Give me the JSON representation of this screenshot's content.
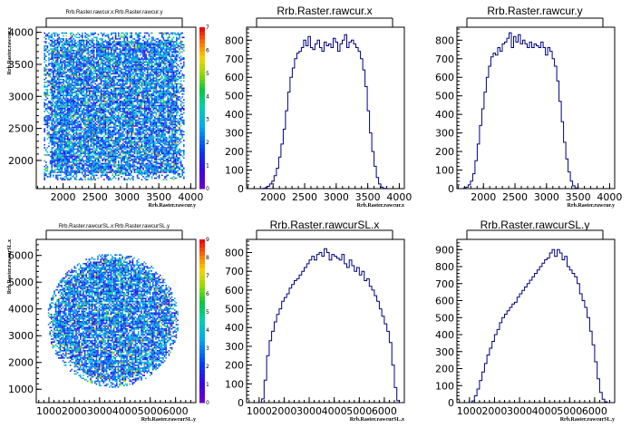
{
  "canvas_bg": "#ffffff",
  "hist_color": "#000080",
  "chart_data": [
    {
      "id": "p1",
      "type": "heatmap",
      "title": "Rrb.Raster.rawcur.x:Rrb.Raster.rawcur.y",
      "xlabel": "Rrb.Raster.rawcur.y",
      "ylabel": "Rrb.Raster.rawcur.x",
      "xlim": [
        1580,
        4080
      ],
      "ylim": [
        1560,
        4080
      ],
      "xticks": [
        2000,
        2500,
        3000,
        3500,
        4000
      ],
      "yticks": [
        2000,
        2500,
        3000,
        3500,
        4000
      ],
      "xticklabels": [
        "2000",
        "2500",
        "3000",
        "3500",
        "4000"
      ],
      "yticklabels": [
        "2000",
        "2500",
        "3000",
        "3500",
        "4000"
      ],
      "shape": "square",
      "cx": 2800,
      "cy": 2850,
      "rx": 1100,
      "ry": 1150,
      "zlim": [
        0,
        7
      ],
      "colorbar_ticks": [
        "0",
        "1",
        "2",
        "3",
        "4",
        "5",
        "6",
        "7"
      ]
    },
    {
      "id": "p2",
      "type": "bar",
      "title": "Rrb.Raster.rawcur.x",
      "xlabel": "Rrb.Raster.rawcur.x",
      "xlim": [
        1580,
        4080
      ],
      "ylim": [
        0,
        870
      ],
      "xticks": [
        2000,
        2500,
        3000,
        3500,
        4000
      ],
      "yticks": [
        0,
        100,
        200,
        300,
        400,
        500,
        600,
        700,
        800
      ],
      "xticklabels": [
        "2000",
        "2500",
        "3000",
        "3500",
        "4000"
      ],
      "yticklabels": [
        "0",
        "100",
        "200",
        "300",
        "400",
        "500",
        "600",
        "700",
        "800"
      ],
      "bins_x0": 1800,
      "bin_width": 36,
      "values": [
        0,
        2,
        5,
        12,
        25,
        40,
        70,
        110,
        170,
        240,
        320,
        420,
        520,
        600,
        650,
        700,
        730,
        740,
        760,
        800,
        770,
        820,
        760,
        750,
        780,
        800,
        760,
        740,
        790,
        770,
        780,
        760,
        810,
        790,
        740,
        780,
        800,
        830,
        760,
        790,
        800,
        780,
        760,
        740,
        700,
        640,
        550,
        420,
        300,
        200,
        120,
        60,
        25,
        8,
        2,
        0
      ]
    },
    {
      "id": "p3",
      "type": "bar",
      "title": "Rrb.Raster.rawcur.y",
      "xlabel": "Rrb.Raster.rawcur.y",
      "xlim": [
        1580,
        4080
      ],
      "ylim": [
        0,
        870
      ],
      "xticks": [
        2000,
        2500,
        3000,
        3500,
        4000
      ],
      "yticks": [
        0,
        100,
        200,
        300,
        400,
        500,
        600,
        700,
        800
      ],
      "xticklabels": [
        "2000",
        "2500",
        "3000",
        "3500",
        "4000"
      ],
      "yticklabels": [
        "0",
        "100",
        "200",
        "300",
        "400",
        "500",
        "600",
        "700",
        "800"
      ],
      "bins_x0": 1650,
      "bin_width": 36,
      "values": [
        0,
        3,
        8,
        20,
        40,
        80,
        150,
        240,
        340,
        430,
        520,
        600,
        660,
        710,
        730,
        720,
        760,
        740,
        780,
        790,
        810,
        840,
        760,
        820,
        790,
        830,
        780,
        800,
        780,
        760,
        790,
        760,
        780,
        770,
        760,
        790,
        760,
        720,
        760,
        740,
        700,
        660,
        580,
        470,
        360,
        250,
        160,
        90,
        40,
        15,
        4,
        0
      ]
    },
    {
      "id": "p4",
      "type": "heatmap",
      "title": "Rrb.Raster.rawcurSL.x:Rrb.Raster.rawcurSL.y",
      "xlabel": "Rrb.Raster.rawcurSL.y",
      "ylabel": "Rrb.Raster.rawcurSL.x",
      "xlim": [
        500,
        6800
      ],
      "ylim": [
        500,
        6600
      ],
      "xticks": [
        1000,
        2000,
        3000,
        4000,
        5000,
        6000
      ],
      "yticks": [
        1000,
        2000,
        3000,
        4000,
        5000,
        6000
      ],
      "xticklabels": [
        "1000",
        "2000",
        "3000",
        "4000",
        "5000",
        "6000"
      ],
      "yticklabels": [
        "1000",
        "2000",
        "3000",
        "4000",
        "5000",
        "6000"
      ],
      "shape": "circle",
      "cx": 3500,
      "cy": 3600,
      "rx": 2600,
      "ry": 2500,
      "zlim": [
        0,
        9
      ],
      "colorbar_ticks": [
        "0",
        "1",
        "2",
        "3",
        "4",
        "5",
        "6",
        "7",
        "8",
        "9"
      ]
    },
    {
      "id": "p5",
      "type": "bar",
      "title": "Rrb.Raster.rawcurSL.x",
      "xlabel": "Rrb.Raster.rawcurSL.x",
      "xlim": [
        500,
        6800
      ],
      "ylim": [
        0,
        870
      ],
      "xticks": [
        1000,
        2000,
        3000,
        4000,
        5000,
        6000
      ],
      "yticks": [
        0,
        100,
        200,
        300,
        400,
        500,
        600,
        700,
        800
      ],
      "xticklabels": [
        "1000",
        "2000",
        "3000",
        "4000",
        "5000",
        "6000"
      ],
      "yticklabels": [
        "0",
        "100",
        "200",
        "300",
        "400",
        "500",
        "600",
        "700",
        "800"
      ],
      "bins_x0": 1000,
      "bin_width": 100,
      "values": [
        0,
        20,
        120,
        250,
        330,
        380,
        430,
        470,
        500,
        540,
        560,
        580,
        610,
        630,
        650,
        660,
        680,
        700,
        720,
        740,
        760,
        780,
        760,
        790,
        800,
        780,
        820,
        800,
        760,
        790,
        780,
        770,
        760,
        790,
        740,
        720,
        760,
        730,
        700,
        720,
        680,
        700,
        650,
        660,
        620,
        600,
        570,
        540,
        500,
        460,
        420,
        380,
        320,
        200,
        80,
        10,
        0
      ]
    },
    {
      "id": "p6",
      "type": "bar",
      "title": "Rrb.Raster.rawcurSL.y",
      "xlabel": "Rrb.Raster.rawcurSL.y",
      "xlim": [
        500,
        6800
      ],
      "ylim": [
        0,
        960
      ],
      "xticks": [
        1000,
        2000,
        3000,
        4000,
        5000,
        6000
      ],
      "yticks": [
        0,
        100,
        200,
        300,
        400,
        500,
        600,
        700,
        800,
        900
      ],
      "xticklabels": [
        "1000",
        "2000",
        "3000",
        "4000",
        "5000",
        "6000"
      ],
      "yticklabels": [
        "0",
        "100",
        "200",
        "300",
        "400",
        "500",
        "600",
        "700",
        "800",
        "900"
      ],
      "bins_x0": 1000,
      "bin_width": 100,
      "values": [
        0,
        10,
        40,
        80,
        130,
        180,
        230,
        280,
        320,
        360,
        400,
        430,
        470,
        500,
        520,
        540,
        560,
        580,
        590,
        620,
        640,
        660,
        680,
        700,
        720,
        740,
        760,
        780,
        800,
        820,
        840,
        850,
        880,
        900,
        860,
        900,
        880,
        840,
        860,
        800,
        780,
        760,
        740,
        700,
        640,
        600,
        560,
        500,
        420,
        340,
        240,
        140,
        60,
        20,
        5,
        0
      ]
    }
  ]
}
